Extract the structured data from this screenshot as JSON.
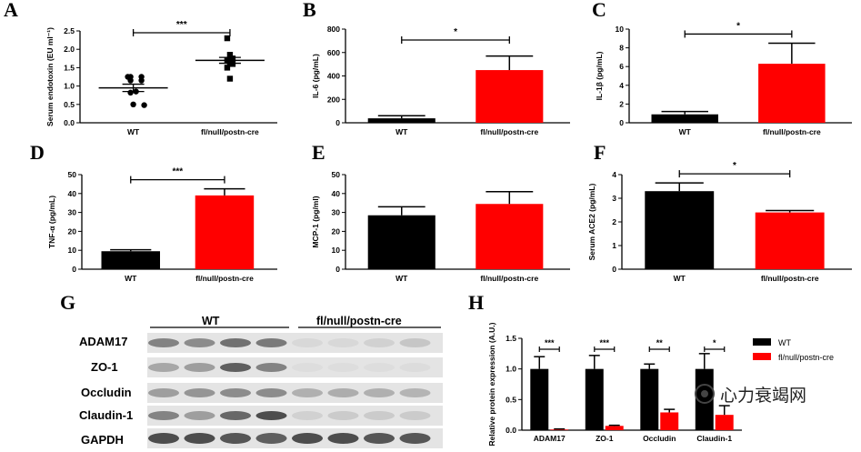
{
  "panel_letters": [
    "A",
    "B",
    "C",
    "D",
    "E",
    "F",
    "G",
    "H"
  ],
  "chart_data": [
    {
      "panel": "A",
      "type": "scatter",
      "ylabel": "Serum endotoxin (EU ml⁻¹)",
      "categories": [
        "WT",
        "fl/null/postn-cre"
      ],
      "ylim": [
        0,
        2.5
      ],
      "yticks": [
        "0.0",
        "0.5",
        "1.0",
        "1.5",
        "2.0",
        "2.5"
      ],
      "sig": "***",
      "points": [
        [
          1.25,
          1.25,
          1.25,
          1.15,
          1.15,
          0.85,
          0.82,
          0.5,
          0.48
        ],
        [
          2.3,
          1.85,
          1.75,
          1.7,
          1.65,
          1.6,
          1.5,
          1.2
        ]
      ],
      "means": [
        0.95,
        1.7
      ],
      "sem": [
        0.1,
        0.08
      ]
    },
    {
      "panel": "B",
      "type": "bar",
      "ylabel": "IL-6 (pg/mL)",
      "categories": [
        "WT",
        "fl/null/postn-cre"
      ],
      "ylim": [
        0,
        800
      ],
      "yticks": [
        "0",
        "200",
        "400",
        "600",
        "800"
      ],
      "values": [
        38,
        450
      ],
      "errors": [
        22,
        120
      ],
      "sig": "*"
    },
    {
      "panel": "C",
      "type": "bar",
      "ylabel": "IL-1β (pg/mL)",
      "categories": [
        "WT",
        "fl/null/postn-cre"
      ],
      "ylim": [
        0,
        10
      ],
      "yticks": [
        "0",
        "2",
        "4",
        "6",
        "8",
        "10"
      ],
      "values": [
        0.9,
        6.3
      ],
      "errors": [
        0.3,
        2.2
      ],
      "sig": "*"
    },
    {
      "panel": "D",
      "type": "bar",
      "ylabel": "TNF-α (pg/mL)",
      "categories": [
        "WT",
        "fl/null/postn-cre"
      ],
      "ylim": [
        0,
        50
      ],
      "yticks": [
        "0",
        "10",
        "20",
        "30",
        "40",
        "50"
      ],
      "values": [
        9.5,
        39
      ],
      "errors": [
        0.8,
        3.5
      ],
      "sig": "***"
    },
    {
      "panel": "E",
      "type": "bar",
      "ylabel": "MCP-1 (pg/ml)",
      "categories": [
        "WT",
        "fl/null/postn-cre"
      ],
      "ylim": [
        0,
        50
      ],
      "yticks": [
        "0",
        "10",
        "20",
        "30",
        "40",
        "50"
      ],
      "values": [
        28.5,
        34.5
      ],
      "errors": [
        4.5,
        6.5
      ],
      "sig": ""
    },
    {
      "panel": "F",
      "type": "bar",
      "ylabel": "Serum ACE2 (pg/mL)",
      "categories": [
        "WT",
        "fl/null/postn-cre"
      ],
      "ylim": [
        0,
        4
      ],
      "yticks": [
        "0",
        "1",
        "2",
        "3",
        "4"
      ],
      "values": [
        3.3,
        2.4
      ],
      "errors": [
        0.35,
        0.08
      ],
      "sig": "*"
    },
    {
      "panel": "H",
      "type": "bar",
      "ylabel": "Relative protein expression (A.U.)",
      "categories": [
        "ADAM17",
        "ZO-1",
        "Occludin",
        "Claudin-1"
      ],
      "ylim": [
        0,
        1.5
      ],
      "yticks": [
        "0.0",
        "0.5",
        "1.0",
        "1.5"
      ],
      "series": [
        {
          "name": "WT",
          "values": [
            1.0,
            1.0,
            1.0,
            1.0
          ],
          "errors": [
            0.2,
            0.22,
            0.08,
            0.25
          ]
        },
        {
          "name": "fl/null/postn-cre",
          "values": [
            0.01,
            0.07,
            0.29,
            0.25
          ],
          "errors": [
            0.01,
            0.01,
            0.05,
            0.15
          ]
        }
      ],
      "sig": [
        "***",
        "***",
        "**",
        "*"
      ],
      "legend": "right"
    }
  ],
  "blot": {
    "groups": [
      "WT",
      "fl/null/postn-cre"
    ],
    "proteins": [
      "ADAM17",
      "ZO-1",
      "Occludin",
      "Claudin-1",
      "GAPDH"
    ]
  },
  "colors": {
    "wt": "#000000",
    "ko": "#ff0000"
  },
  "watermark": "心力衰竭网"
}
